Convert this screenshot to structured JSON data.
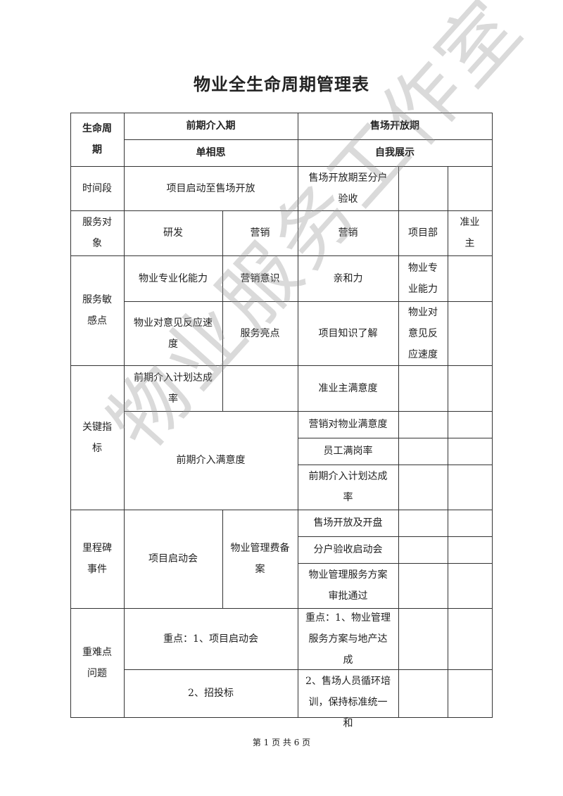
{
  "document": {
    "title": "物业全生命周期管理表",
    "watermark": "物业服务工作室",
    "footer": "第 1 页 共 6 页"
  },
  "table": {
    "header": {
      "lifecycle": "生命周期",
      "phase1": "前期介入期",
      "phase2": "售场开放期",
      "phase1_theme": "单相思",
      "phase2_theme": "自我展示"
    },
    "time_period": {
      "label": "时间段",
      "phase1": "项目启动至售场开放",
      "phase2": "售场开放期至分户验收"
    },
    "service_target": {
      "label": "服务对象",
      "items": [
        "研发",
        "营销",
        "营销",
        "项目部",
        "准业主"
      ]
    },
    "sensitive_points": {
      "label": "服务敏感点",
      "row1": [
        "物业专业化能力",
        "营销意识",
        "亲和力",
        "物业专业能力"
      ],
      "row2": [
        "物业对意见反应速度",
        "服务亮点",
        "项目知识了解",
        "物业对意见反应速度"
      ]
    },
    "kpi": {
      "label": "关键指标",
      "phase1": [
        "前期介入计划达成率",
        "前期介入满意度"
      ],
      "phase2": [
        "准业主满意度",
        "营销对物业满意度",
        "员工满岗率",
        "前期介入计划达成率"
      ]
    },
    "milestones": {
      "label": "里程碑事件",
      "phase1": [
        "项目启动会",
        "物业管理费备案"
      ],
      "phase2": [
        "售场开放及开盘",
        "分户验收启动会",
        "物业管理服务方案审批通过"
      ]
    },
    "key_issues": {
      "label": "重难点问题",
      "phase1": [
        "重点：1、项目启动会",
        "2、招投标"
      ],
      "phase2": [
        "重点：1、物业管理服务方案与地产达成",
        "2、售场人员循环培训，保持标准统一和"
      ]
    }
  }
}
